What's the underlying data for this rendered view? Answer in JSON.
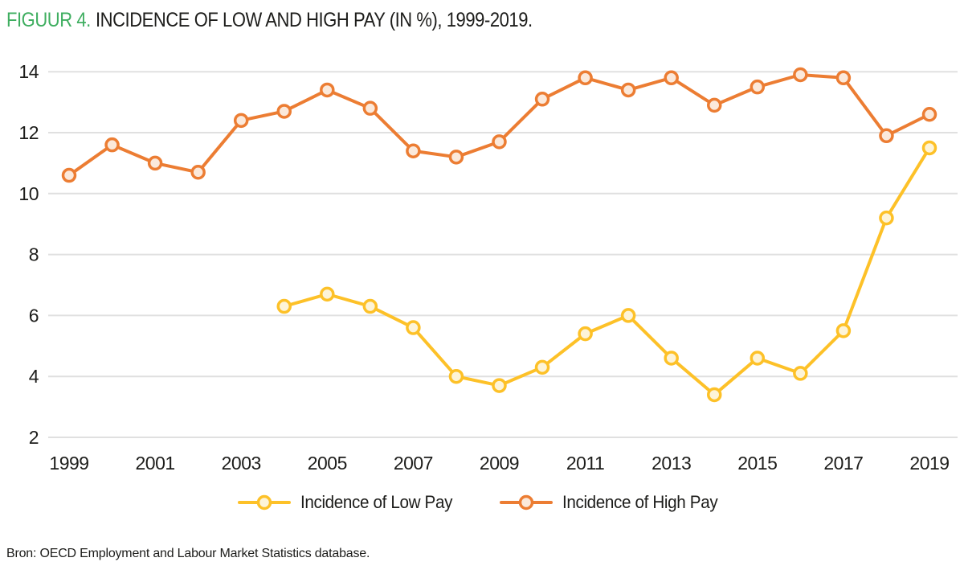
{
  "figure": {
    "label": "FIGUUR 4.",
    "title": "INCIDENCE OF LOW AND HIGH PAY (IN %), 1999-2019.",
    "label_color": "#3FAE60",
    "source": "Bron: OECD Employment and Labour Market Statistics database."
  },
  "chart_data": {
    "type": "line",
    "x": [
      1999,
      2000,
      2001,
      2002,
      2003,
      2004,
      2005,
      2006,
      2007,
      2008,
      2009,
      2010,
      2011,
      2012,
      2013,
      2014,
      2015,
      2016,
      2017,
      2018,
      2019
    ],
    "series": [
      {
        "name": "Incidence of Low Pay",
        "color": "#FDC128",
        "marker_fill": "#FDF4D8",
        "values": [
          null,
          null,
          null,
          null,
          null,
          6.3,
          6.7,
          6.3,
          5.6,
          4.0,
          3.7,
          4.3,
          5.4,
          6.0,
          4.6,
          3.4,
          4.6,
          4.1,
          5.5,
          9.2,
          11.5
        ]
      },
      {
        "name": "Incidence of High Pay",
        "color": "#EC7D33",
        "marker_fill": "#FBE9DB",
        "values": [
          10.6,
          11.6,
          11.0,
          10.7,
          12.4,
          12.7,
          13.4,
          12.8,
          11.4,
          11.2,
          11.7,
          13.1,
          13.8,
          13.4,
          13.8,
          12.9,
          13.5,
          13.9,
          13.8,
          11.9,
          12.6
        ]
      }
    ],
    "ylim": [
      2,
      14
    ],
    "yticks": [
      2,
      4,
      6,
      8,
      10,
      12,
      14
    ],
    "xticks": [
      1999,
      2001,
      2003,
      2005,
      2007,
      2009,
      2011,
      2013,
      2015,
      2017,
      2019
    ],
    "grid": "horizontal",
    "grid_color": "#E0E0E0",
    "text_color": "#1D1D1B",
    "legend_position": "bottom"
  }
}
